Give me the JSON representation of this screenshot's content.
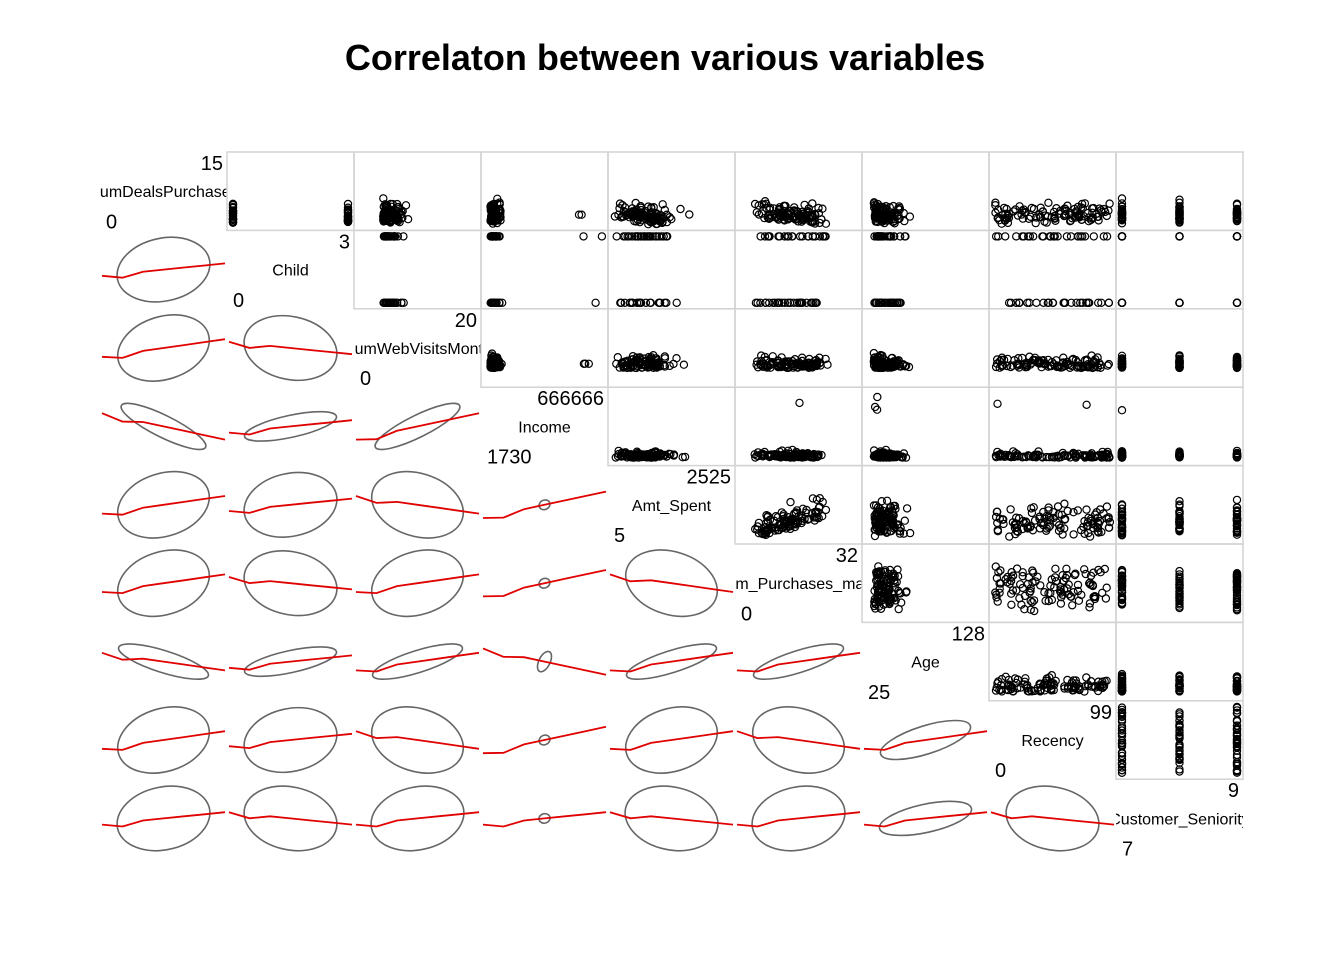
{
  "chart_data": {
    "type": "scatter",
    "subtype": "pairs-panels",
    "title": "Correlaton between various variables",
    "variables": [
      {
        "name": "NumDealsPurchases",
        "min": "0",
        "max": "15"
      },
      {
        "name": "Child",
        "min": "0",
        "max": "3"
      },
      {
        "name": "NumWebVisitsMonth",
        "min": "0",
        "max": "20"
      },
      {
        "name": "Income",
        "min": "1730",
        "max": "666666"
      },
      {
        "name": "Amt_Spent",
        "min": "5",
        "max": "2525"
      },
      {
        "name": "Num_Purchases_made",
        "min": "0",
        "max": "32"
      },
      {
        "name": "Age",
        "min": "25",
        "max": "128"
      },
      {
        "name": "Recency",
        "min": "0",
        "max": "99"
      },
      {
        "name": "Customer_Seniority",
        "min": "7",
        "max": "9"
      }
    ],
    "upper_panels": "scatter points",
    "lower_panels": "correlation ellipses with loess smooth",
    "colors": {
      "points": "#000000",
      "ellipse": "#666666",
      "smooth": "#e00000",
      "frame": "#d3d3d3"
    }
  }
}
